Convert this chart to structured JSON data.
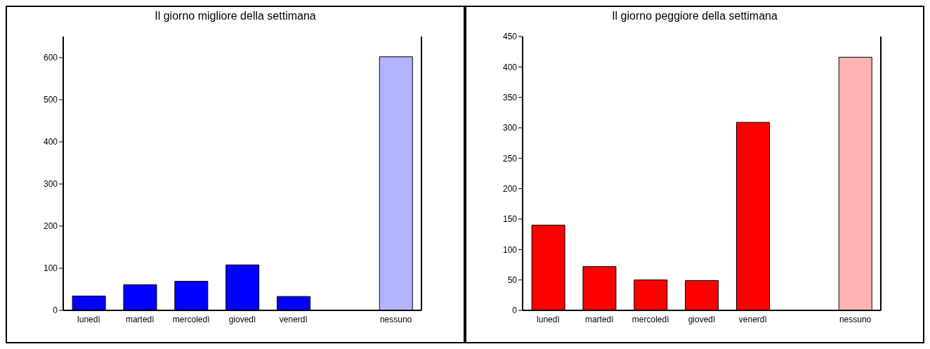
{
  "chart_data": [
    {
      "type": "bar",
      "title": "Il giorno migliore della settimana",
      "categories": [
        "lunedì",
        "martedì",
        "mercoledì",
        "giovedì",
        "venerdì",
        null,
        "nessuno"
      ],
      "values": [
        34,
        61,
        69,
        108,
        33,
        null,
        602
      ],
      "colors": [
        "#0000ff",
        "#0000ff",
        "#0000ff",
        "#0000ff",
        "#0000ff",
        "#0000ff",
        "#b3b3ff"
      ],
      "ylim": [
        0,
        650
      ],
      "yticks": [
        0,
        100,
        200,
        300,
        400,
        500,
        600
      ]
    },
    {
      "type": "bar",
      "title": "Il giorno peggiore della settimana",
      "categories": [
        "lunedì",
        "martedì",
        "mercoledì",
        "giovedì",
        "venerdì",
        null,
        "nessuno"
      ],
      "values": [
        140,
        72,
        50,
        49,
        309,
        null,
        416
      ],
      "colors": [
        "#ff0000",
        "#ff0000",
        "#ff0000",
        "#ff0000",
        "#ff0000",
        "#ff0000",
        "#ffb3b3"
      ],
      "ylim": [
        0,
        450
      ],
      "yticks": [
        0,
        50,
        100,
        150,
        200,
        250,
        300,
        350,
        400,
        450
      ]
    }
  ]
}
